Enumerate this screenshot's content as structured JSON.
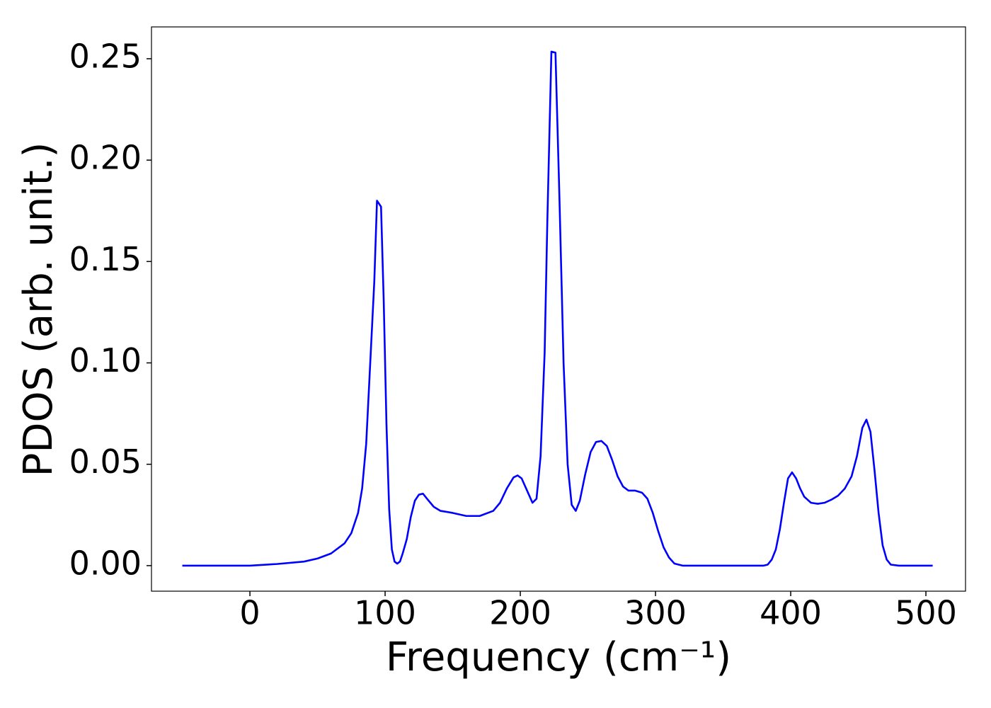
{
  "chart_data": {
    "type": "line",
    "x_label": "Frequency (cm⁻¹)",
    "y_label": "PDOS (arb. unit.)",
    "color": "#0000ff",
    "x": [
      -50,
      0,
      20,
      40,
      50,
      60,
      70,
      75,
      80,
      83,
      86,
      89,
      92,
      94,
      97,
      99,
      101,
      103,
      105,
      107,
      109,
      111,
      113,
      116,
      119,
      122,
      125,
      128,
      131,
      136,
      141,
      150,
      160,
      170,
      180,
      185,
      190,
      195,
      198,
      201,
      205,
      209,
      212,
      215,
      218,
      220,
      223,
      226,
      229,
      232,
      235,
      238,
      241,
      244,
      248,
      252,
      256,
      260,
      264,
      268,
      272,
      276,
      280,
      285,
      290,
      294,
      298,
      302,
      306,
      310,
      314,
      320,
      340,
      380,
      383,
      386,
      389,
      392,
      395,
      398,
      401,
      404,
      407,
      410,
      415,
      420,
      425,
      430,
      435,
      440,
      445,
      449,
      453,
      456,
      459,
      462,
      465,
      468,
      471,
      474,
      480,
      505
    ],
    "values": [
      0,
      0,
      0.0008,
      0.002,
      0.0035,
      0.006,
      0.011,
      0.016,
      0.026,
      0.038,
      0.06,
      0.1,
      0.14,
      0.18,
      0.177,
      0.13,
      0.07,
      0.028,
      0.008,
      0.002,
      0.001,
      0.002,
      0.006,
      0.013,
      0.024,
      0.032,
      0.035,
      0.0355,
      0.033,
      0.029,
      0.027,
      0.026,
      0.0245,
      0.0245,
      0.027,
      0.031,
      0.038,
      0.0435,
      0.0445,
      0.043,
      0.037,
      0.031,
      0.033,
      0.054,
      0.105,
      0.17,
      0.2535,
      0.253,
      0.18,
      0.1,
      0.05,
      0.03,
      0.027,
      0.032,
      0.045,
      0.056,
      0.061,
      0.0615,
      0.059,
      0.052,
      0.044,
      0.039,
      0.037,
      0.037,
      0.036,
      0.033,
      0.026,
      0.017,
      0.009,
      0.004,
      0.001,
      0,
      0,
      0,
      0.0005,
      0.003,
      0.008,
      0.018,
      0.031,
      0.043,
      0.046,
      0.043,
      0.038,
      0.034,
      0.031,
      0.0305,
      0.031,
      0.0325,
      0.0345,
      0.038,
      0.044,
      0.054,
      0.068,
      0.072,
      0.066,
      0.047,
      0.026,
      0.01,
      0.003,
      0.0005,
      0,
      0
    ],
    "xlim": [
      -72.8,
      529.3
    ],
    "ylim": [
      -0.0126,
      0.2657
    ],
    "xticks": [
      0,
      100,
      200,
      300,
      400,
      500
    ],
    "yticks": [
      {
        "value": 0,
        "label": "0.00"
      },
      {
        "value": 0.05,
        "label": "0.05"
      },
      {
        "value": 0.1,
        "label": "0.10"
      },
      {
        "value": 0.15,
        "label": "0.15"
      },
      {
        "value": 0.2,
        "label": "0.20"
      },
      {
        "value": 0.25,
        "label": "0.25"
      }
    ],
    "grid": false
  }
}
